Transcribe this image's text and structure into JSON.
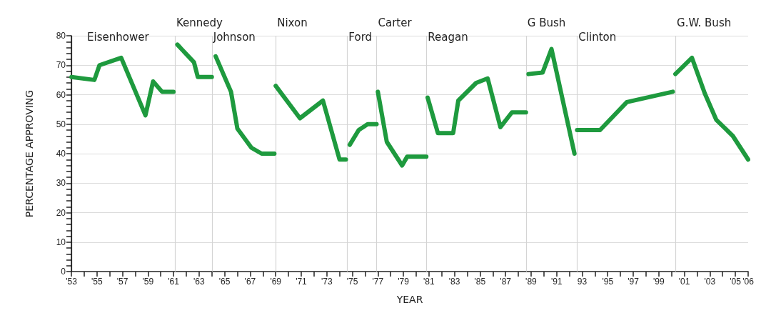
{
  "chart_data": {
    "type": "line",
    "xlabel": "YEAR",
    "ylabel": "PERCENTAGE APPROVING",
    "xlim": [
      1953,
      2006
    ],
    "ylim": [
      0,
      80
    ],
    "xticks": [
      {
        "value": 1953,
        "label": "'53"
      },
      {
        "value": 1954,
        "label": null
      },
      {
        "value": 1955,
        "label": "'55"
      },
      {
        "value": 1956,
        "label": null
      },
      {
        "value": 1957,
        "label": "'57"
      },
      {
        "value": 1958,
        "label": null
      },
      {
        "value": 1959,
        "label": "'59"
      },
      {
        "value": 1960,
        "label": null
      },
      {
        "value": 1961,
        "label": "'61"
      },
      {
        "value": 1962,
        "label": null
      },
      {
        "value": 1963,
        "label": "'63"
      },
      {
        "value": 1964,
        "label": null
      },
      {
        "value": 1965,
        "label": "'65"
      },
      {
        "value": 1966,
        "label": null
      },
      {
        "value": 1967,
        "label": "'67"
      },
      {
        "value": 1968,
        "label": null
      },
      {
        "value": 1969,
        "label": "'69"
      },
      {
        "value": 1970,
        "label": null
      },
      {
        "value": 1971,
        "label": "'71"
      },
      {
        "value": 1972,
        "label": null
      },
      {
        "value": 1973,
        "label": "'73"
      },
      {
        "value": 1974,
        "label": null
      },
      {
        "value": 1975,
        "label": "'75"
      },
      {
        "value": 1976,
        "label": null
      },
      {
        "value": 1977,
        "label": "'77"
      },
      {
        "value": 1978,
        "label": null
      },
      {
        "value": 1979,
        "label": "'79"
      },
      {
        "value": 1980,
        "label": null
      },
      {
        "value": 1981,
        "label": "'81"
      },
      {
        "value": 1982,
        "label": null
      },
      {
        "value": 1983,
        "label": "'83"
      },
      {
        "value": 1984,
        "label": null
      },
      {
        "value": 1985,
        "label": "'85"
      },
      {
        "value": 1986,
        "label": null
      },
      {
        "value": 1987,
        "label": "'87"
      },
      {
        "value": 1988,
        "label": null
      },
      {
        "value": 1989,
        "label": "'89"
      },
      {
        "value": 1990,
        "label": null
      },
      {
        "value": 1991,
        "label": "'91"
      },
      {
        "value": 1992,
        "label": null
      },
      {
        "value": 1993,
        "label": "93"
      },
      {
        "value": 1994,
        "label": null
      },
      {
        "value": 1995,
        "label": "'95"
      },
      {
        "value": 1996,
        "label": null
      },
      {
        "value": 1997,
        "label": "'97"
      },
      {
        "value": 1998,
        "label": null
      },
      {
        "value": 1999,
        "label": "'99"
      },
      {
        "value": 2000,
        "label": null
      },
      {
        "value": 2001,
        "label": "'01"
      },
      {
        "value": 2002,
        "label": null
      },
      {
        "value": 2003,
        "label": "'03"
      },
      {
        "value": 2004,
        "label": null
      },
      {
        "value": 2005,
        "label": "'05"
      },
      {
        "value": 2006,
        "label": "'06"
      }
    ],
    "yticks": [
      0,
      {
        "value": 2,
        "label": null
      },
      {
        "value": 4,
        "label": null
      },
      {
        "value": 6,
        "label": null
      },
      {
        "value": 8,
        "label": null
      },
      10,
      {
        "value": 12,
        "label": null
      },
      {
        "value": 14,
        "label": null
      },
      {
        "value": 16,
        "label": null
      },
      {
        "value": 18,
        "label": null
      },
      20,
      {
        "value": 22,
        "label": null
      },
      {
        "value": 24,
        "label": null
      },
      {
        "value": 26,
        "label": null
      },
      {
        "value": 28,
        "label": null
      },
      30,
      {
        "value": 32,
        "label": null
      },
      {
        "value": 34,
        "label": null
      },
      {
        "value": 36,
        "label": null
      },
      {
        "value": 38,
        "label": null
      },
      40,
      {
        "value": 42,
        "label": null
      },
      {
        "value": 44,
        "label": null
      },
      {
        "value": 46,
        "label": null
      },
      {
        "value": 48,
        "label": null
      },
      50,
      {
        "value": 52,
        "label": null
      },
      {
        "value": 54,
        "label": null
      },
      {
        "value": 56,
        "label": null
      },
      {
        "value": 58,
        "label": null
      },
      60,
      {
        "value": 62,
        "label": null
      },
      {
        "value": 64,
        "label": null
      },
      {
        "value": 66,
        "label": null
      },
      {
        "value": 68,
        "label": null
      },
      70,
      {
        "value": 72,
        "label": null
      },
      {
        "value": 74,
        "label": null
      },
      {
        "value": 76,
        "label": null
      },
      {
        "value": 78,
        "label": null
      },
      80
    ],
    "grid": "y",
    "marker": "none",
    "line_style": "solid",
    "ref_lines": [
      {
        "axis": "x",
        "value": 1953,
        "label": "Eisenhower",
        "color": "#222222"
      },
      {
        "axis": "x",
        "value": 1961.1,
        "label": "Kennedy",
        "color": "#d4d4d4"
      },
      {
        "axis": "x",
        "value": 1964.0,
        "label": "Johnson",
        "color": "#d4d4d4"
      },
      {
        "axis": "x",
        "value": 1969.0,
        "label": "Nixon",
        "color": "#d4d4d4"
      },
      {
        "axis": "x",
        "value": 1974.6,
        "label": "Ford",
        "color": "#d4d4d4"
      },
      {
        "axis": "x",
        "value": 1976.9,
        "label": "Carter",
        "color": "#d4d4d4"
      },
      {
        "axis": "x",
        "value": 1980.8,
        "label": "Reagan",
        "color": "#d4d4d4"
      },
      {
        "axis": "x",
        "value": 1988.6,
        "label": "G Bush",
        "color": "#d4d4d4"
      },
      {
        "axis": "x",
        "value": 1992.6,
        "label": "Clinton",
        "color": "#d4d4d4"
      },
      {
        "axis": "x",
        "value": 2000.3,
        "label": "G.W. Bush",
        "color": "#d4d4d4"
      }
    ],
    "series": [
      {
        "color": "#1e9a3e",
        "x": [
          1953,
          1954.8,
          1955.2,
          1956.9,
          1958.8,
          1959.4,
          1960.1,
          1961
        ],
        "values": [
          66,
          65,
          70,
          72.5,
          53,
          64.5,
          61,
          61
        ]
      },
      {
        "color": "#1e9a3e",
        "x": [
          1961.3,
          1962.6,
          1962.9,
          1964.0
        ],
        "values": [
          77,
          71,
          66,
          66
        ]
      },
      {
        "color": "#1e9a3e",
        "x": [
          1964.3,
          1965.5,
          1966,
          1967.1,
          1967.9,
          1968.9
        ],
        "values": [
          73,
          61,
          48.5,
          42,
          40,
          40
        ]
      },
      {
        "color": "#1e9a3e",
        "x": [
          1969,
          1970.9,
          1972.7,
          1974,
          1974.5
        ],
        "values": [
          63,
          52,
          58,
          38,
          38
        ]
      },
      {
        "color": "#1e9a3e",
        "x": [
          1974.8,
          1975.5,
          1976.2,
          1976.9
        ],
        "values": [
          43,
          48,
          50,
          50
        ]
      },
      {
        "color": "#1e9a3e",
        "x": [
          1977,
          1977.7,
          1978.9,
          1979.3,
          1980.8
        ],
        "values": [
          61,
          44,
          36,
          39,
          39
        ]
      },
      {
        "color": "#1e9a3e",
        "x": [
          1980.9,
          1981.7,
          1982.9,
          1983.3,
          1984.7,
          1985.6,
          1986.6,
          1987.5,
          1988.6
        ],
        "values": [
          59,
          47,
          47,
          58,
          64,
          65.5,
          49,
          54,
          54
        ]
      },
      {
        "color": "#1e9a3e",
        "x": [
          1988.8,
          1989.9,
          1990.6,
          1992.4
        ],
        "values": [
          67,
          67.5,
          75.5,
          40
        ]
      },
      {
        "color": "#1e9a3e",
        "x": [
          1992.6,
          1994.4,
          1996.5,
          2000.1
        ],
        "values": [
          48,
          48,
          57.5,
          61
        ]
      },
      {
        "color": "#1e9a3e",
        "x": [
          2000.3,
          2001.6,
          2002.6,
          2003.5,
          2004.8,
          2006
        ],
        "values": [
          67,
          72.5,
          60.5,
          51.5,
          46,
          38
        ]
      }
    ]
  }
}
